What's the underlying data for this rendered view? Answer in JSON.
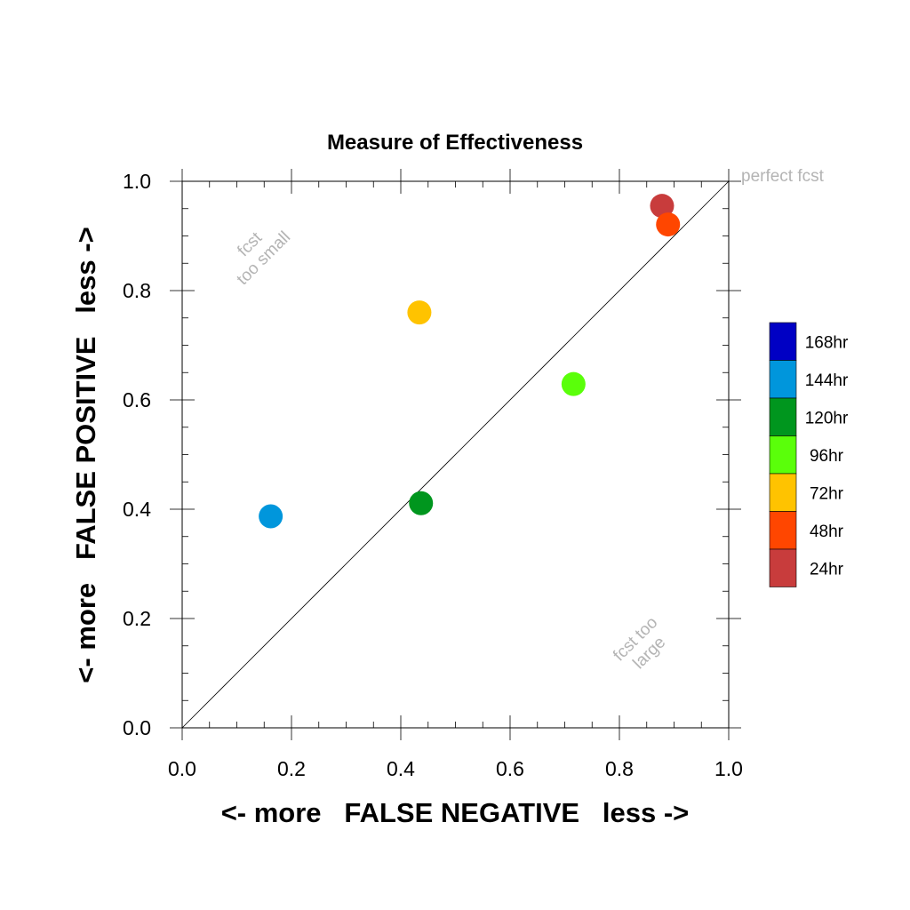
{
  "chart_data": {
    "type": "scatter",
    "title": "Measure of Effectiveness",
    "xlabel": "<- more   FALSE NEGATIVE   less ->",
    "ylabel": "<- more   FALSE POSITIVE   less ->",
    "xlim": [
      0,
      1
    ],
    "ylim": [
      0,
      1
    ],
    "x_ticks": [
      "0.0",
      "0.2",
      "0.4",
      "0.6",
      "0.8",
      "1.0"
    ],
    "y_ticks": [
      "0.0",
      "0.2",
      "0.4",
      "0.6",
      "0.8",
      "1.0"
    ],
    "grid": false,
    "reference_line": "y = x",
    "annotations": {
      "perfect": "perfect fcst",
      "too_small_line1": "fcst",
      "too_small_line2": "too small",
      "too_large_line1": "fcst too",
      "too_large_line2": "large"
    },
    "legend_position": "right",
    "legend": [
      {
        "label": "168hr",
        "color": "#0000c4"
      },
      {
        "label": "144hr",
        "color": "#0096dc"
      },
      {
        "label": "120hr",
        "color": "#00961e"
      },
      {
        "label": "96hr",
        "color": "#5aff0a"
      },
      {
        "label": "72hr",
        "color": "#ffc300"
      },
      {
        "label": "48hr",
        "color": "#ff4600"
      },
      {
        "label": "24hr",
        "color": "#c83c3c"
      }
    ],
    "points": [
      {
        "series": "24hr",
        "x": 0.878,
        "y": 0.955,
        "color": "#c83c3c"
      },
      {
        "series": "48hr",
        "x": 0.889,
        "y": 0.921,
        "color": "#ff4600"
      },
      {
        "series": "72hr",
        "x": 0.434,
        "y": 0.76,
        "color": "#ffc300"
      },
      {
        "series": "96hr",
        "x": 0.716,
        "y": 0.629,
        "color": "#5aff0a"
      },
      {
        "series": "120hr",
        "x": 0.437,
        "y": 0.411,
        "color": "#00961e"
      },
      {
        "series": "144hr",
        "x": 0.162,
        "y": 0.387,
        "color": "#0096dc"
      }
    ]
  }
}
